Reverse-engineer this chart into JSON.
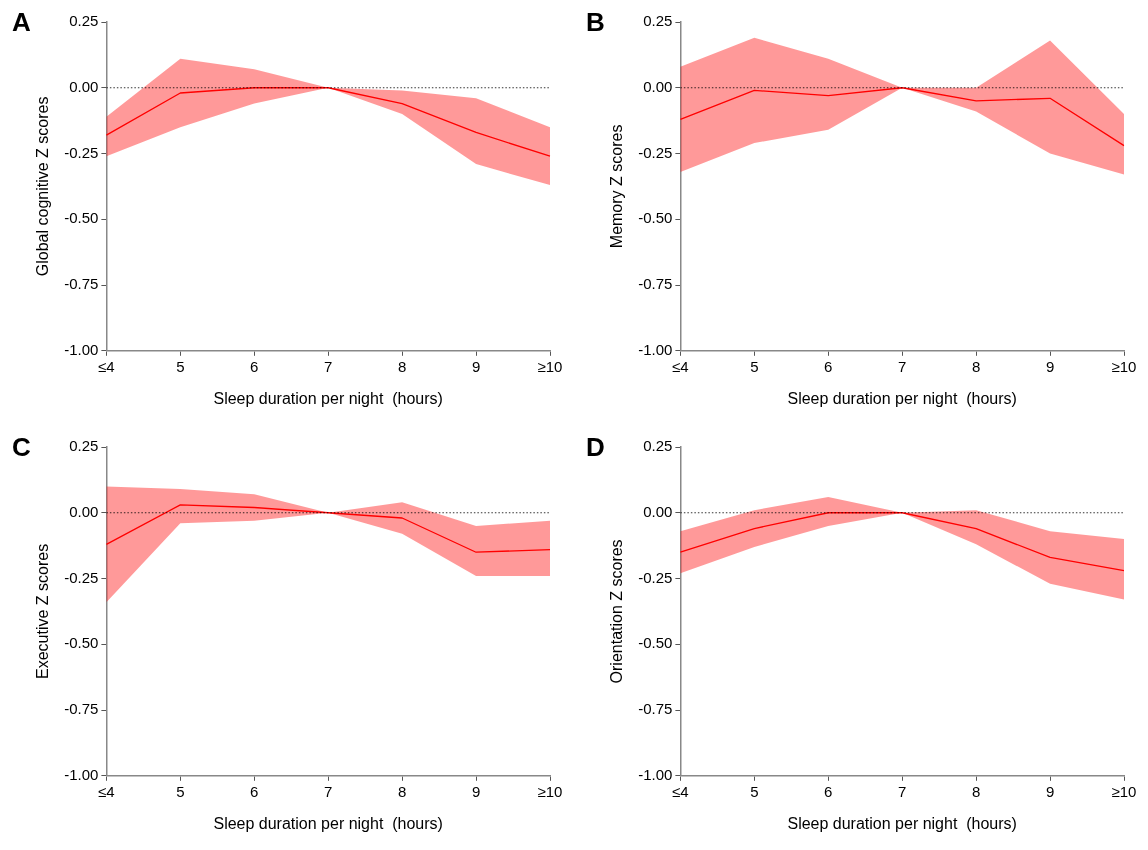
{
  "chart_data": [
    {
      "type": "line",
      "title": "A",
      "xlabel": "Sleep duration per night  (hours)",
      "ylabel": "Global cognitive Z scores",
      "categories": [
        "≤4",
        "5",
        "6",
        "7",
        "8",
        "9",
        "≥10"
      ],
      "series": [
        {
          "color": "#ff0000",
          "values": [
            -0.18,
            -0.02,
            0.0,
            0.0,
            -0.06,
            -0.17,
            -0.26
          ],
          "lower": [
            -0.26,
            -0.15,
            -0.06,
            0.0,
            -0.1,
            -0.29,
            -0.37
          ],
          "upper": [
            -0.11,
            0.11,
            0.07,
            0.0,
            -0.01,
            -0.04,
            -0.15
          ]
        }
      ],
      "ylim": [
        -1,
        0.25
      ],
      "yticks": [
        {
          "value": -1,
          "label": "-1.00"
        },
        {
          "value": -0.75,
          "label": "-0.75"
        },
        {
          "value": -0.5,
          "label": "-0.50"
        },
        {
          "value": -0.25,
          "label": "-0.25"
        },
        {
          "value": 0,
          "label": "0.00"
        },
        {
          "value": 0.25,
          "label": "0.25"
        }
      ],
      "ref_lines": [
        {
          "axis": "y",
          "value": 0,
          "color": "#000000",
          "line_style": "dotted"
        }
      ],
      "grid": false,
      "marker": "none",
      "line_style": "solid"
    },
    {
      "type": "line",
      "title": "B",
      "xlabel": "Sleep duration per night  (hours)",
      "ylabel": "Memory Z scores",
      "categories": [
        "≤4",
        "5",
        "6",
        "7",
        "8",
        "9",
        "≥10"
      ],
      "series": [
        {
          "color": "#ff0000",
          "values": [
            -0.12,
            -0.01,
            -0.03,
            0.0,
            -0.05,
            -0.04,
            -0.22
          ],
          "lower": [
            -0.32,
            -0.21,
            -0.16,
            0.0,
            -0.09,
            -0.25,
            -0.33
          ],
          "upper": [
            0.08,
            0.19,
            0.11,
            0.0,
            0.0,
            0.18,
            -0.1
          ]
        }
      ],
      "ylim": [
        -1,
        0.25
      ],
      "yticks": [
        {
          "value": -1,
          "label": "-1.00"
        },
        {
          "value": -0.75,
          "label": "-0.75"
        },
        {
          "value": -0.5,
          "label": "-0.50"
        },
        {
          "value": -0.25,
          "label": "-0.25"
        },
        {
          "value": 0,
          "label": "0.00"
        },
        {
          "value": 0.25,
          "label": "0.25"
        }
      ],
      "ref_lines": [
        {
          "axis": "y",
          "value": 0,
          "color": "#000000",
          "line_style": "dotted"
        }
      ],
      "grid": false,
      "marker": "none",
      "line_style": "solid"
    },
    {
      "type": "line",
      "title": "C",
      "xlabel": "Sleep duration per night  (hours)",
      "ylabel": "Executive Z scores",
      "categories": [
        "≤4",
        "5",
        "6",
        "7",
        "8",
        "9",
        "≥10"
      ],
      "series": [
        {
          "color": "#ff0000",
          "values": [
            -0.12,
            0.03,
            0.02,
            0.0,
            -0.02,
            -0.15,
            -0.14
          ],
          "lower": [
            -0.34,
            -0.04,
            -0.03,
            0.0,
            -0.08,
            -0.24,
            -0.24
          ],
          "upper": [
            0.1,
            0.09,
            0.07,
            0.0,
            0.04,
            -0.05,
            -0.03
          ]
        }
      ],
      "ylim": [
        -1,
        0.25
      ],
      "yticks": [
        {
          "value": -1,
          "label": "-1.00"
        },
        {
          "value": -0.75,
          "label": "-0.75"
        },
        {
          "value": -0.5,
          "label": "-0.50"
        },
        {
          "value": -0.25,
          "label": "-0.25"
        },
        {
          "value": 0,
          "label": "0.00"
        },
        {
          "value": 0.25,
          "label": "0.25"
        }
      ],
      "ref_lines": [
        {
          "axis": "y",
          "value": 0,
          "color": "#000000",
          "line_style": "dotted"
        }
      ],
      "grid": false,
      "marker": "none",
      "line_style": "solid"
    },
    {
      "type": "line",
      "title": "D",
      "xlabel": "Sleep duration per night  (hours)",
      "ylabel": "Orientation Z scores",
      "categories": [
        "≤4",
        "5",
        "6",
        "7",
        "8",
        "9",
        "≥10"
      ],
      "series": [
        {
          "color": "#ff0000",
          "values": [
            -0.15,
            -0.06,
            0.0,
            0.0,
            -0.06,
            -0.17,
            -0.22
          ],
          "lower": [
            -0.23,
            -0.13,
            -0.05,
            0.0,
            -0.12,
            -0.27,
            -0.33
          ],
          "upper": [
            -0.07,
            0.01,
            0.06,
            0.0,
            0.01,
            -0.07,
            -0.1
          ]
        }
      ],
      "ylim": [
        -1,
        0.25
      ],
      "yticks": [
        {
          "value": -1,
          "label": "-1.00"
        },
        {
          "value": -0.75,
          "label": "-0.75"
        },
        {
          "value": -0.5,
          "label": "-0.50"
        },
        {
          "value": -0.25,
          "label": "-0.25"
        },
        {
          "value": 0,
          "label": "0.00"
        },
        {
          "value": 0.25,
          "label": "0.25"
        }
      ],
      "ref_lines": [
        {
          "axis": "y",
          "value": 0,
          "color": "#000000",
          "line_style": "dotted"
        }
      ],
      "grid": false,
      "marker": "none",
      "line_style": "solid"
    }
  ]
}
